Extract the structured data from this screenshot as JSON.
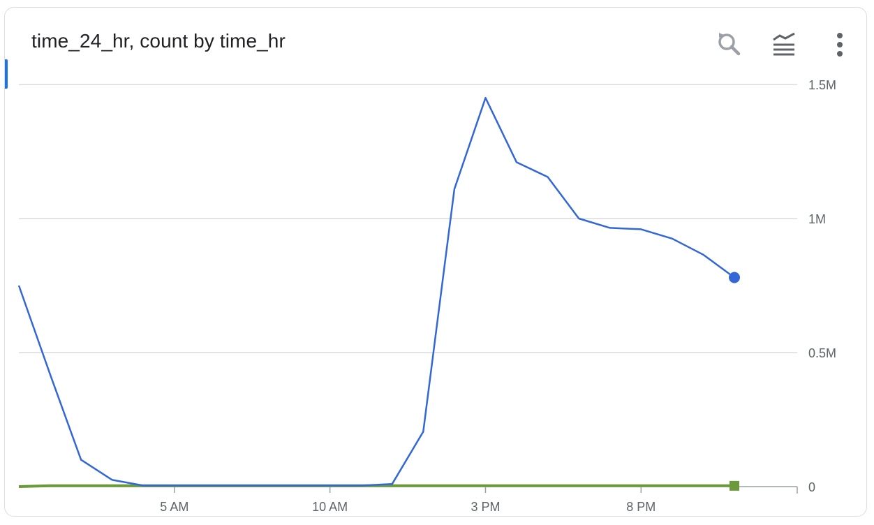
{
  "header": {
    "title": "time_24_hr, count by time_hr"
  },
  "toolbar": {
    "zoom_icon": "zoom-reset-icon",
    "legend_icon": "legend-toggle-icon",
    "menu_icon": "more-vert-icon"
  },
  "colors": {
    "series_blue": "#3367d6",
    "series_green": "#6a9a3a",
    "grid": "#dadce0",
    "axis_text": "#5f6368"
  },
  "chart_data": {
    "type": "line",
    "title": "time_24_hr, count by time_hr",
    "x": [
      0,
      1,
      2,
      3,
      4,
      5,
      6,
      7,
      8,
      9,
      10,
      11,
      12,
      13,
      14,
      15,
      16,
      17,
      18,
      19,
      20,
      21,
      22,
      23
    ],
    "x_ticks": [
      {
        "value": 5,
        "label": "5 AM"
      },
      {
        "value": 10,
        "label": "10 AM"
      },
      {
        "value": 15,
        "label": "3 PM"
      },
      {
        "value": 20,
        "label": "8 PM"
      }
    ],
    "series": [
      {
        "color": "#3367d6",
        "values": [
          750000,
          420000,
          100000,
          25000,
          4000,
          4000,
          4000,
          4000,
          4000,
          4000,
          4000,
          4000,
          10000,
          205000,
          1110000,
          1450000,
          1210000,
          1155000,
          1000000,
          965000,
          960000,
          925000,
          865000,
          780000
        ]
      },
      {
        "color": "#6a9a3a",
        "values": [
          0,
          3000,
          3000,
          3000,
          3000,
          3000,
          3000,
          3000,
          3000,
          3000,
          3000,
          3000,
          3000,
          3000,
          3000,
          3000,
          3000,
          3000,
          3000,
          3000,
          3000,
          3000,
          3000,
          3000
        ]
      }
    ],
    "y_ticks": [
      {
        "value": 0,
        "label": "0"
      },
      {
        "value": 500000,
        "label": "0.5M"
      },
      {
        "value": 1000000,
        "label": "1M"
      },
      {
        "value": 1500000,
        "label": "1.5M"
      }
    ],
    "ylim": [
      0,
      1500000
    ],
    "xlim": [
      0,
      23
    ],
    "grid": true,
    "y_axis_side": "right"
  }
}
